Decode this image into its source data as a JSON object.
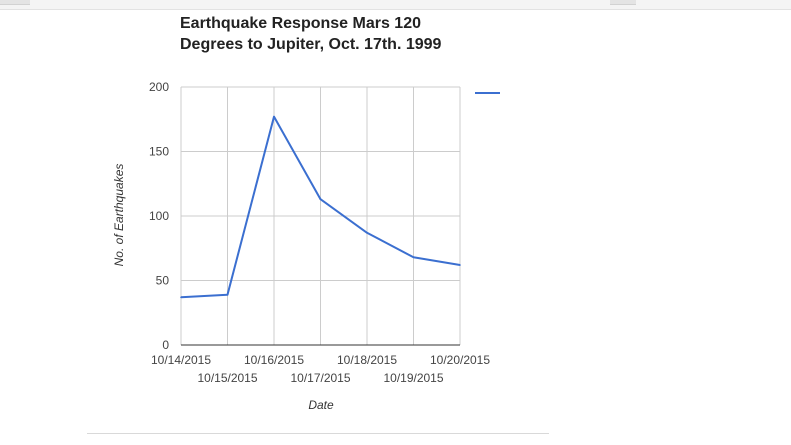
{
  "chart_data": {
    "type": "line",
    "title": "Earthquake Response Mars 120 Degrees to Jupiter, Oct. 17th. 1999",
    "xlabel": "Date",
    "ylabel": "No. of Earthquakes",
    "categories": [
      "10/14/2015",
      "10/15/2015",
      "10/16/2015",
      "10/17/2015",
      "10/18/2015",
      "10/19/2015",
      "10/20/2015"
    ],
    "series": [
      {
        "values": [
          37,
          39,
          177,
          113,
          87,
          68,
          62
        ],
        "color": "#3b6fd0"
      }
    ],
    "ylim": [
      0,
      200
    ],
    "yticks": [
      0,
      50,
      100,
      150,
      200
    ],
    "grid": true,
    "legend": "top-right"
  }
}
